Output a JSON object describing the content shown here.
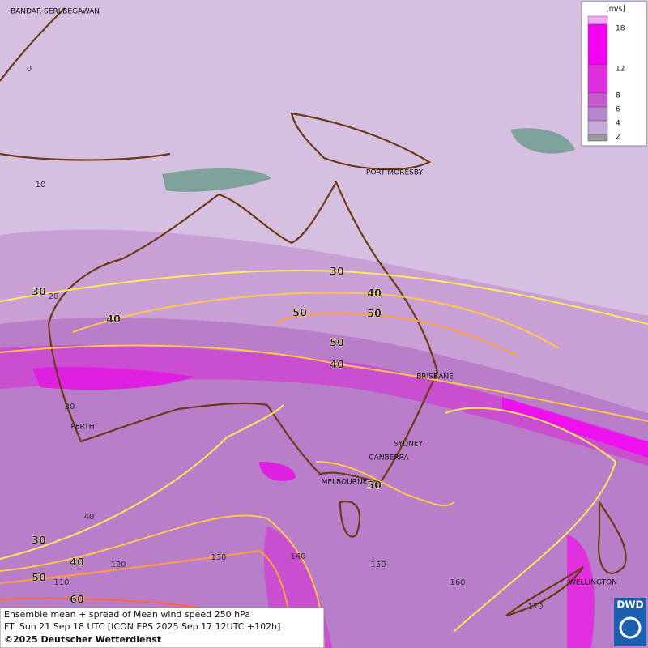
{
  "legend": {
    "unit": "[m/s]",
    "ticks": [
      18,
      12,
      8,
      6,
      4,
      2
    ]
  },
  "places": [
    "BANDAR SERI BEGAWAN",
    "PORT MORESBY",
    "BRISBANE",
    "PERTH",
    "SYDNEY",
    "CANBERRA",
    "MELBOURNE",
    "WELLINGTON"
  ],
  "grid_labels": [
    "0",
    "10",
    "20",
    "30",
    "40",
    "110",
    "120",
    "130",
    "140",
    "150",
    "160",
    "170"
  ],
  "contour_labels": [
    30,
    40,
    50,
    50,
    50,
    40,
    30,
    40,
    30,
    40,
    50,
    60,
    50
  ],
  "caption": [
    "Ensemble mean + spread of Mean wind speed 250 hPa",
    "FT: Sun 21 Sep 18 UTC [ICON EPS 2025 Sep 17 12UTC +102h]",
    "©2025 Deutscher Wetterdienst"
  ],
  "logo": "DWD"
}
